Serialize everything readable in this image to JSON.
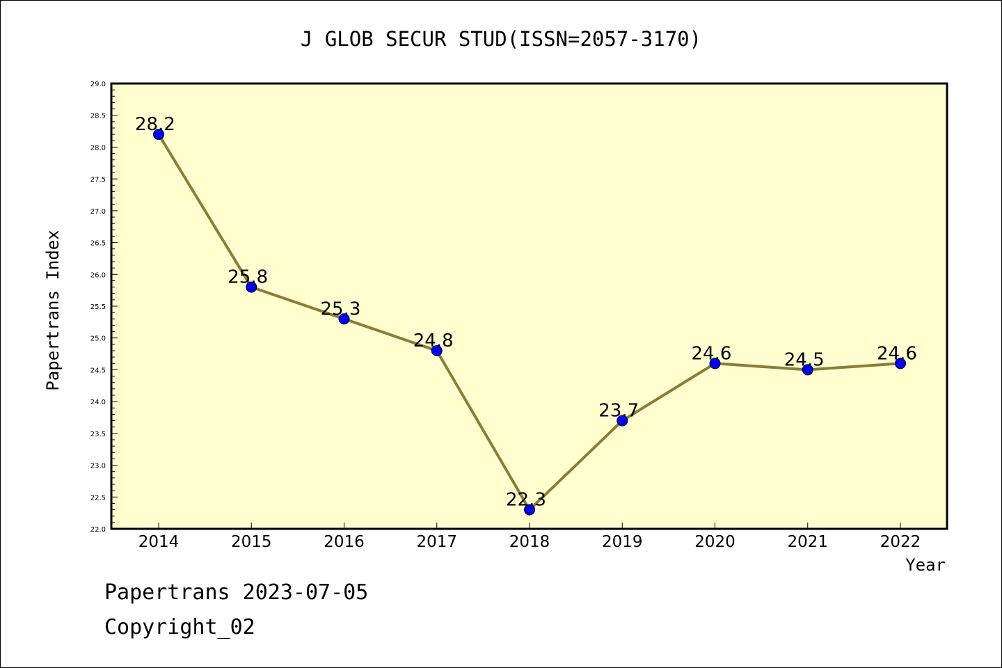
{
  "chart_data": {
    "type": "line",
    "title": "J GLOB SECUR STUD(ISSN=2057-3170)",
    "xlabel": "Year",
    "ylabel": "Papertrans Index",
    "categories": [
      "2014",
      "2015",
      "2016",
      "2017",
      "2018",
      "2019",
      "2020",
      "2021",
      "2022"
    ],
    "series": [
      {
        "values": [
          28.2,
          25.8,
          25.3,
          24.8,
          22.3,
          23.7,
          24.6,
          24.5,
          24.6
        ]
      }
    ],
    "data_labels": [
      "28.2",
      "25.8",
      "25.3",
      "24.8",
      "22.3",
      "23.7",
      "24.6",
      "24.5",
      "24.6"
    ],
    "ylim": [
      22.0,
      29.0
    ],
    "yticks": [
      "22.0",
      "22.5",
      "23.0",
      "23.5",
      "24.0",
      "24.5",
      "25.0",
      "25.5",
      "26.0",
      "26.5",
      "27.0",
      "27.5",
      "28.0",
      "28.5",
      "29.0"
    ],
    "grid": false,
    "colors": {
      "plot_background": "#ffffd0",
      "line": "#8b7d35",
      "marker": "#0000ff",
      "axis": "#000000"
    }
  },
  "footer": {
    "date_line": "Papertrans 2023-07-05",
    "copyright_line": "Copyright_02"
  }
}
